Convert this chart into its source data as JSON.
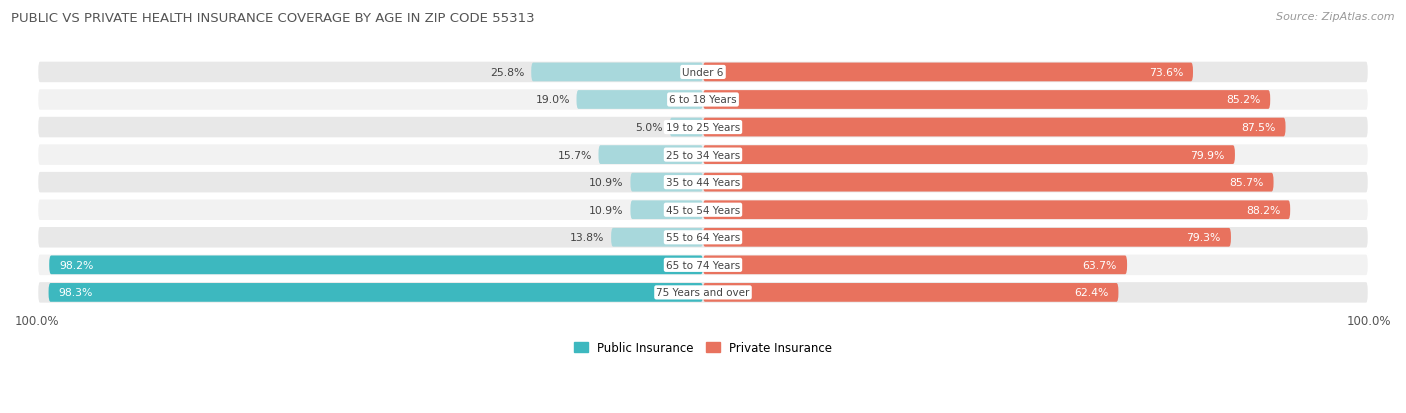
{
  "title": "PUBLIC VS PRIVATE HEALTH INSURANCE COVERAGE BY AGE IN ZIP CODE 55313",
  "source": "Source: ZipAtlas.com",
  "categories": [
    "Under 6",
    "6 to 18 Years",
    "19 to 25 Years",
    "25 to 34 Years",
    "35 to 44 Years",
    "45 to 54 Years",
    "55 to 64 Years",
    "65 to 74 Years",
    "75 Years and over"
  ],
  "public_values": [
    25.8,
    19.0,
    5.0,
    15.7,
    10.9,
    10.9,
    13.8,
    98.2,
    98.3
  ],
  "private_values": [
    73.6,
    85.2,
    87.5,
    79.9,
    85.7,
    88.2,
    79.3,
    63.7,
    62.4
  ],
  "public_color_dark": "#3db8bf",
  "public_color_light": "#a8d8dc",
  "private_color_dark": "#e8725e",
  "private_color_light": "#f2b8ae",
  "row_bg_color1": "#e8e8e8",
  "row_bg_color2": "#f2f2f2",
  "title_color": "#555555",
  "source_color": "#999999",
  "label_dark_color": "#333333",
  "label_white_color": "#ffffff",
  "figsize": [
    14.06,
    4.14
  ],
  "dpi": 100
}
